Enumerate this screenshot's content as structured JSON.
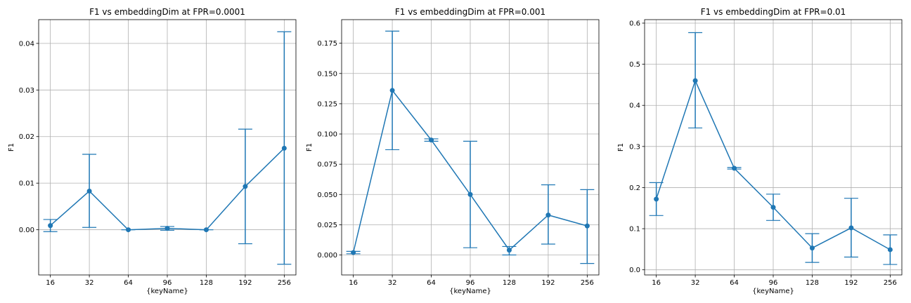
{
  "chart_data": [
    {
      "type": "line",
      "title": "F1 vs embeddingDim at FPR=0.0001",
      "xlabel": "{keyName}",
      "ylabel": "F1",
      "categories": [
        "16",
        "32",
        "64",
        "96",
        "128",
        "192",
        "256"
      ],
      "series": [
        {
          "values": [
            0.0009,
            0.0083,
            0.0,
            0.0003,
            0.0,
            0.0093,
            0.0175
          ],
          "err_low": [
            -0.0004,
            0.0005,
            0.0,
            -0.0001,
            0.0,
            -0.003,
            -0.0074
          ],
          "err_high": [
            0.0022,
            0.0162,
            0.0,
            0.0007,
            0.0,
            0.0216,
            0.0425
          ]
        }
      ],
      "ylim": [
        -0.0097,
        0.0451
      ],
      "yticks": [
        0.0,
        0.01,
        0.02,
        0.03,
        0.04
      ],
      "ytick_labels": [
        "0.00",
        "0.01",
        "0.02",
        "0.03",
        "0.04"
      ],
      "grid": true,
      "color": "#1f77b4"
    },
    {
      "type": "line",
      "title": "F1 vs embeddingDim at FPR=0.001",
      "xlabel": "{keyName}",
      "ylabel": "F1",
      "categories": [
        "16",
        "32",
        "64",
        "96",
        "128",
        "192",
        "256"
      ],
      "series": [
        {
          "values": [
            0.002,
            0.136,
            0.095,
            0.05,
            0.004,
            0.033,
            0.024
          ],
          "err_low": [
            0.001,
            0.087,
            0.094,
            0.006,
            0.0,
            0.009,
            -0.007
          ],
          "err_high": [
            0.003,
            0.185,
            0.096,
            0.094,
            0.007,
            0.058,
            0.054
          ]
        }
      ],
      "ylim": [
        -0.0165,
        0.1945
      ],
      "yticks": [
        0.0,
        0.025,
        0.05,
        0.075,
        0.1,
        0.125,
        0.15,
        0.175
      ],
      "ytick_labels": [
        "0.000",
        "0.025",
        "0.050",
        "0.075",
        "0.100",
        "0.125",
        "0.150",
        "0.175"
      ],
      "grid": true,
      "color": "#1f77b4"
    },
    {
      "type": "line",
      "title": "F1 vs embeddingDim at FPR=0.01",
      "xlabel": "{keyName}",
      "ylabel": "F1",
      "categories": [
        "16",
        "32",
        "64",
        "96",
        "128",
        "192",
        "256"
      ],
      "series": [
        {
          "values": [
            0.172,
            0.46,
            0.247,
            0.152,
            0.053,
            0.102,
            0.049
          ],
          "err_low": [
            0.132,
            0.345,
            0.245,
            0.12,
            0.018,
            0.031,
            0.013
          ],
          "err_high": [
            0.212,
            0.577,
            0.249,
            0.184,
            0.088,
            0.174,
            0.085
          ]
        }
      ],
      "ylim": [
        -0.0125,
        0.6085
      ],
      "yticks": [
        0.0,
        0.1,
        0.2,
        0.3,
        0.4,
        0.5,
        0.6
      ],
      "ytick_labels": [
        "0.0",
        "0.1",
        "0.2",
        "0.3",
        "0.4",
        "0.5",
        "0.6"
      ],
      "grid": true,
      "color": "#1f77b4"
    }
  ]
}
